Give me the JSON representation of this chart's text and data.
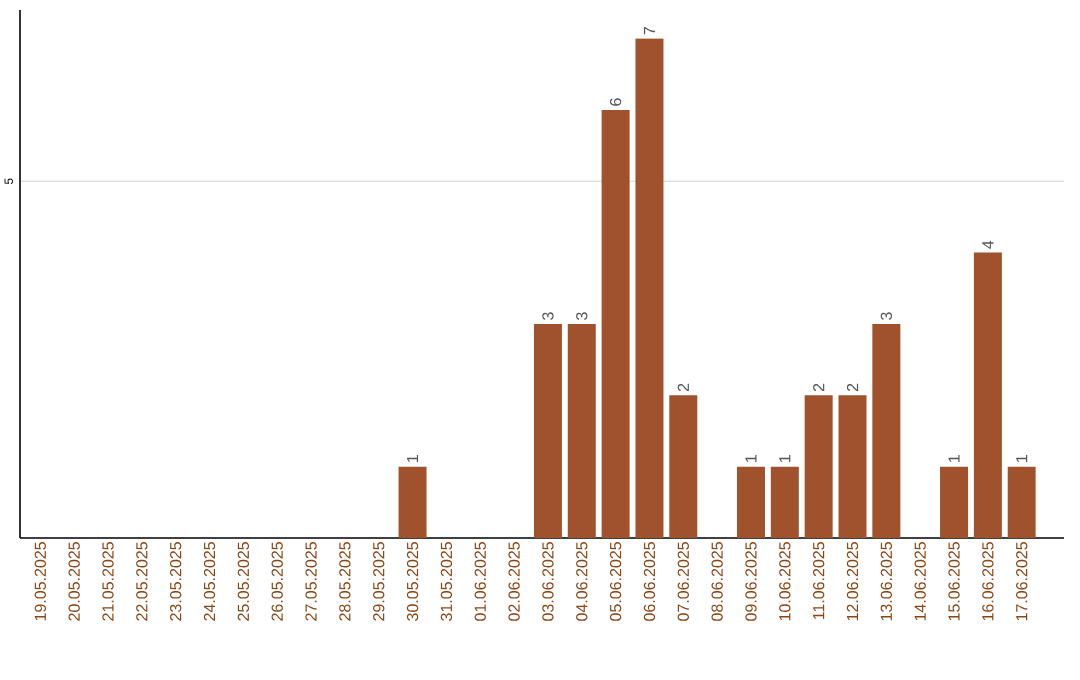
{
  "chart_data": {
    "type": "bar",
    "categories": [
      "19.05.2025",
      "20.05.2025",
      "21.05.2025",
      "22.05.2025",
      "23.05.2025",
      "24.05.2025",
      "25.05.2025",
      "26.05.2025",
      "27.05.2025",
      "28.05.2025",
      "29.05.2025",
      "30.05.2025",
      "31.05.2025",
      "01.06.2025",
      "02.06.2025",
      "03.06.2025",
      "04.06.2025",
      "05.06.2025",
      "06.06.2025",
      "07.06.2025",
      "08.06.2025",
      "09.06.2025",
      "10.06.2025",
      "11.06.2025",
      "12.06.2025",
      "13.06.2025",
      "14.06.2025",
      "15.06.2025",
      "16.06.2025",
      "17.06.2025"
    ],
    "values": [
      0,
      0,
      0,
      0,
      0,
      0,
      0,
      0,
      0,
      0,
      0,
      1,
      0,
      0,
      0,
      3,
      3,
      6,
      7,
      2,
      0,
      1,
      1,
      2,
      2,
      3,
      0,
      1,
      4,
      1
    ],
    "value_labels": [
      null,
      null,
      null,
      null,
      null,
      null,
      null,
      null,
      null,
      null,
      null,
      "1",
      null,
      null,
      null,
      "3",
      "3",
      "6",
      "7",
      "2",
      null,
      "1",
      "1",
      "2",
      "2",
      "3",
      null,
      "1",
      "4",
      "1"
    ],
    "color": "#a0522d",
    "ylim": [
      0,
      7.4
    ],
    "yticks": [
      5
    ],
    "grid": "y"
  }
}
